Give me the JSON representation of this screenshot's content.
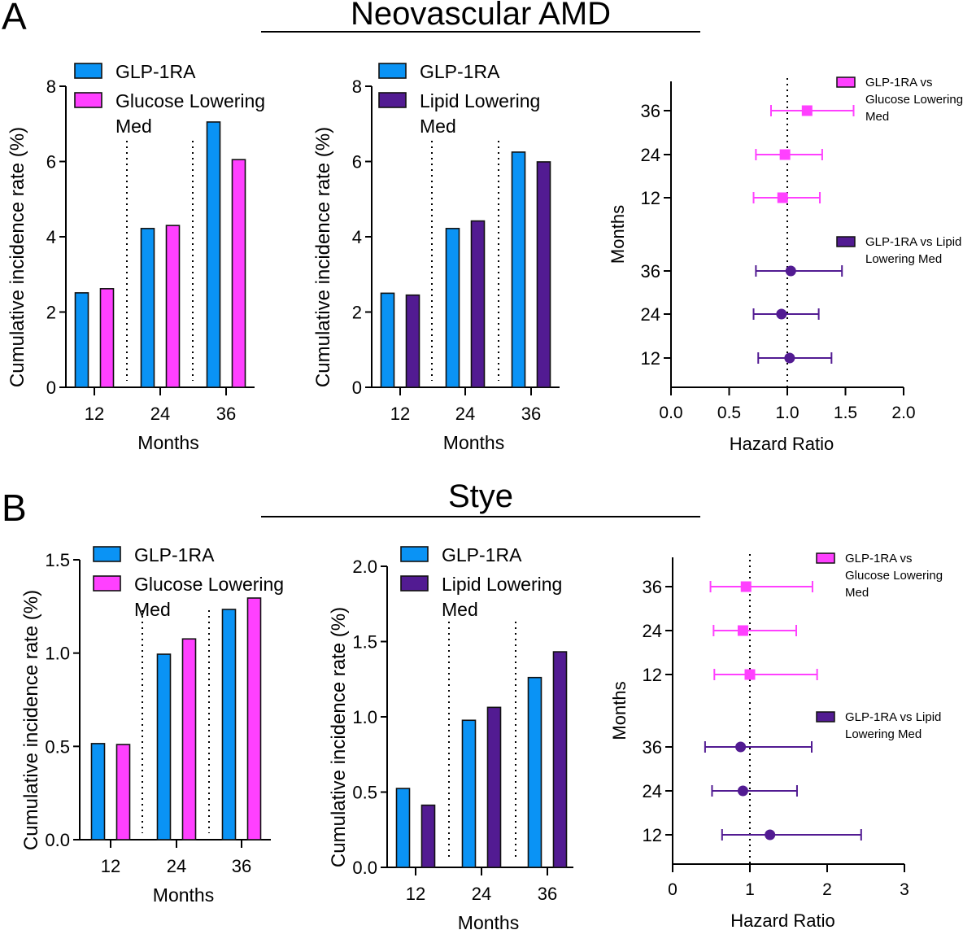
{
  "colors": {
    "glp1ra": "#0a93f5",
    "glucose": "#ff40ff",
    "lipid": "#521b92",
    "axis": "#000000"
  },
  "panel_labels": [
    "A",
    "B"
  ],
  "sections": [
    {
      "title": "Neovascular AMD"
    },
    {
      "title": "Stye"
    }
  ],
  "chart_data": [
    {
      "id": "A1",
      "type": "bar",
      "section": "Neovascular AMD",
      "title": "",
      "xlabel": "Months",
      "ylabel": "Cumulative incidence rate (%)",
      "categories": [
        "12",
        "24",
        "36"
      ],
      "ylim": [
        0,
        8
      ],
      "yticks": [
        0,
        2,
        4,
        6,
        8
      ],
      "ytick_labels": [
        "0",
        "2",
        "4",
        "6",
        "8"
      ],
      "legend_position": "top-left",
      "series": [
        {
          "name": "GLP-1RA",
          "color_key": "glp1ra",
          "legend_lines": [
            "GLP-1RA"
          ],
          "values": [
            2.51,
            4.22,
            7.05
          ]
        },
        {
          "name": "Glucose Lowering Med",
          "color_key": "glucose",
          "legend_lines": [
            "Glucose Lowering",
            "Med"
          ],
          "values": [
            2.62,
            4.3,
            6.05
          ]
        }
      ],
      "separators": true
    },
    {
      "id": "A2",
      "type": "bar",
      "section": "Neovascular AMD",
      "title": "",
      "xlabel": "Months",
      "ylabel": "Cumulative incidence rate (%)",
      "categories": [
        "12",
        "24",
        "36"
      ],
      "ylim": [
        0,
        8
      ],
      "yticks": [
        0,
        2,
        4,
        6,
        8
      ],
      "ytick_labels": [
        "0",
        "2",
        "4",
        "6",
        "8"
      ],
      "legend_position": "top-left",
      "series": [
        {
          "name": "GLP-1RA",
          "color_key": "glp1ra",
          "legend_lines": [
            "GLP-1RA"
          ],
          "values": [
            2.5,
            4.22,
            6.25
          ]
        },
        {
          "name": "Lipid Lowering Med",
          "color_key": "lipid",
          "legend_lines": [
            "Lipid Lowering",
            "Med"
          ],
          "values": [
            2.45,
            4.42,
            5.99
          ]
        }
      ],
      "separators": true
    },
    {
      "id": "A3",
      "type": "scatter",
      "subtype": "forest",
      "section": "Neovascular AMD",
      "title": "",
      "xlabel": "Hazard Ratio",
      "ylabel": "Months",
      "xlim": [
        0,
        2
      ],
      "xticks": [
        0,
        0.5,
        1.0,
        1.5,
        2.0
      ],
      "xtick_labels": [
        "0.0",
        "0.5",
        "1.0",
        "1.5",
        "2.0"
      ],
      "reference_line": 1.0,
      "legend_position": "right",
      "series": [
        {
          "name": "GLP-1RA vs Glucose Lowering Med",
          "color_key": "glucose",
          "marker": "square",
          "legend_lines": [
            "GLP-1RA vs",
            "Glucose Lowering",
            "Med"
          ],
          "points": [
            {
              "month": "36",
              "hr": 1.17,
              "lo": 0.86,
              "hi": 1.57
            },
            {
              "month": "24",
              "hr": 0.98,
              "lo": 0.73,
              "hi": 1.3
            },
            {
              "month": "12",
              "hr": 0.96,
              "lo": 0.71,
              "hi": 1.28
            }
          ]
        },
        {
          "name": "GLP-1RA vs Lipid Lowering Med",
          "color_key": "lipid",
          "marker": "circle",
          "legend_lines": [
            "GLP-1RA vs Lipid",
            "Lowering Med"
          ],
          "points": [
            {
              "month": "36",
              "hr": 1.03,
              "lo": 0.73,
              "hi": 1.47
            },
            {
              "month": "24",
              "hr": 0.95,
              "lo": 0.71,
              "hi": 1.27
            },
            {
              "month": "12",
              "hr": 1.02,
              "lo": 0.75,
              "hi": 1.38
            }
          ]
        }
      ]
    },
    {
      "id": "B1",
      "type": "bar",
      "section": "Stye",
      "title": "",
      "xlabel": "Months",
      "ylabel": "Cumulative incidence rate (%)",
      "categories": [
        "12",
        "24",
        "36"
      ],
      "ylim": [
        0,
        1.5
      ],
      "yticks": [
        0,
        0.5,
        1.0,
        1.5
      ],
      "ytick_labels": [
        "0.0",
        "0.5",
        "1.0",
        "1.5"
      ],
      "legend_position": "top-left",
      "series": [
        {
          "name": "GLP-1RA",
          "color_key": "glp1ra",
          "legend_lines": [
            "GLP-1RA"
          ],
          "values": [
            0.515,
            0.994,
            1.234
          ]
        },
        {
          "name": "Glucose Lowering Med",
          "color_key": "glucose",
          "legend_lines": [
            "Glucose Lowering",
            "Med"
          ],
          "values": [
            0.51,
            1.076,
            1.295
          ]
        }
      ],
      "separators": true
    },
    {
      "id": "B2",
      "type": "bar",
      "section": "Stye",
      "title": "",
      "xlabel": "Months",
      "ylabel": "Cumulative incidence rate (%)",
      "categories": [
        "12",
        "24",
        "36"
      ],
      "ylim": [
        0,
        2.0
      ],
      "yticks": [
        0,
        0.5,
        1.0,
        1.5,
        2.0
      ],
      "ytick_labels": [
        "0.0",
        "0.5",
        "1.0",
        "1.5",
        "2.0"
      ],
      "legend_position": "top-left",
      "series": [
        {
          "name": "GLP-1RA",
          "color_key": "glp1ra",
          "legend_lines": [
            "GLP-1RA"
          ],
          "values": [
            0.524,
            0.977,
            1.261
          ]
        },
        {
          "name": "Lipid Lowering Med",
          "color_key": "lipid",
          "legend_lines": [
            "Lipid Lowering",
            "Med"
          ],
          "values": [
            0.413,
            1.063,
            1.432
          ]
        }
      ],
      "separators": true
    },
    {
      "id": "B3",
      "type": "scatter",
      "subtype": "forest",
      "section": "Stye",
      "title": "",
      "xlabel": "Hazard Ratio",
      "ylabel": "Months",
      "xlim": [
        0,
        3
      ],
      "xticks": [
        0,
        1,
        2,
        3
      ],
      "xtick_labels": [
        "0",
        "1",
        "2",
        "3"
      ],
      "reference_line": 1.0,
      "legend_position": "right",
      "series": [
        {
          "name": "GLP-1RA vs Glucose Lowering Med",
          "color_key": "glucose",
          "marker": "square",
          "legend_lines": [
            "GLP-1RA vs",
            "Glucose Lowering",
            "Med"
          ],
          "points": [
            {
              "month": "36",
              "hr": 0.95,
              "lo": 0.49,
              "hi": 1.81
            },
            {
              "month": "24",
              "hr": 0.91,
              "lo": 0.53,
              "hi": 1.6
            },
            {
              "month": "12",
              "hr": 1.0,
              "lo": 0.54,
              "hi": 1.87
            }
          ]
        },
        {
          "name": "GLP-1RA vs Lipid Lowering Med",
          "color_key": "lipid",
          "marker": "circle",
          "legend_lines": [
            "GLP-1RA vs Lipid",
            "Lowering Med"
          ],
          "points": [
            {
              "month": "36",
              "hr": 0.88,
              "lo": 0.42,
              "hi": 1.8
            },
            {
              "month": "24",
              "hr": 0.91,
              "lo": 0.51,
              "hi": 1.61
            },
            {
              "month": "12",
              "hr": 1.26,
              "lo": 0.64,
              "hi": 2.44
            }
          ]
        }
      ]
    }
  ]
}
